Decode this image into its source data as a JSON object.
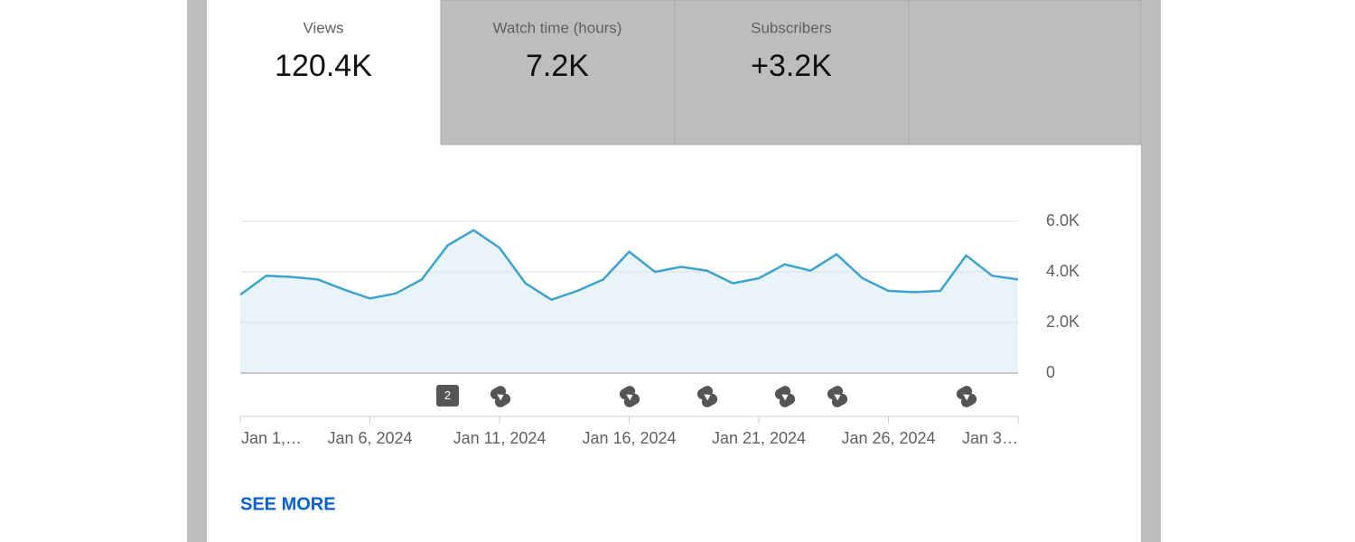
{
  "tabs": [
    {
      "label": "Views",
      "value": "120.4K"
    },
    {
      "label": "Watch time (hours)",
      "value": "7.2K"
    },
    {
      "label": "Subscribers",
      "value": "+3.2K"
    }
  ],
  "chart_data": {
    "type": "line",
    "categories": [
      "Jan 1,…",
      null,
      null,
      null,
      null,
      "Jan 6, 2024",
      null,
      null,
      null,
      null,
      "Jan 11, 2024",
      null,
      null,
      null,
      null,
      "Jan 16, 2024",
      null,
      null,
      null,
      null,
      "Jan 21, 2024",
      null,
      null,
      null,
      null,
      "Jan 26, 2024",
      null,
      null,
      null,
      null,
      "Jan 3…"
    ],
    "series": [
      {
        "name": "Views",
        "color": "#3ea2cf",
        "values": [
          3100,
          3850,
          3800,
          3700,
          3300,
          2950,
          3150,
          3700,
          5050,
          5650,
          4950,
          3550,
          2900,
          3250,
          3700,
          4800,
          4000,
          4200,
          4050,
          3550,
          3750,
          4300,
          4050,
          4700,
          3750,
          3250,
          3200,
          3250,
          4650,
          3850,
          3700
        ]
      }
    ],
    "ylim": [
      0,
      6000
    ],
    "yticks": [
      0,
      {
        "value": 2000,
        "label": "2.0K"
      },
      {
        "value": 4000,
        "label": "4.0K"
      },
      {
        "value": 6000,
        "label": "6.0K"
      }
    ],
    "grid": true,
    "annotations": [
      "2"
    ]
  },
  "link": "SEE MORE"
}
